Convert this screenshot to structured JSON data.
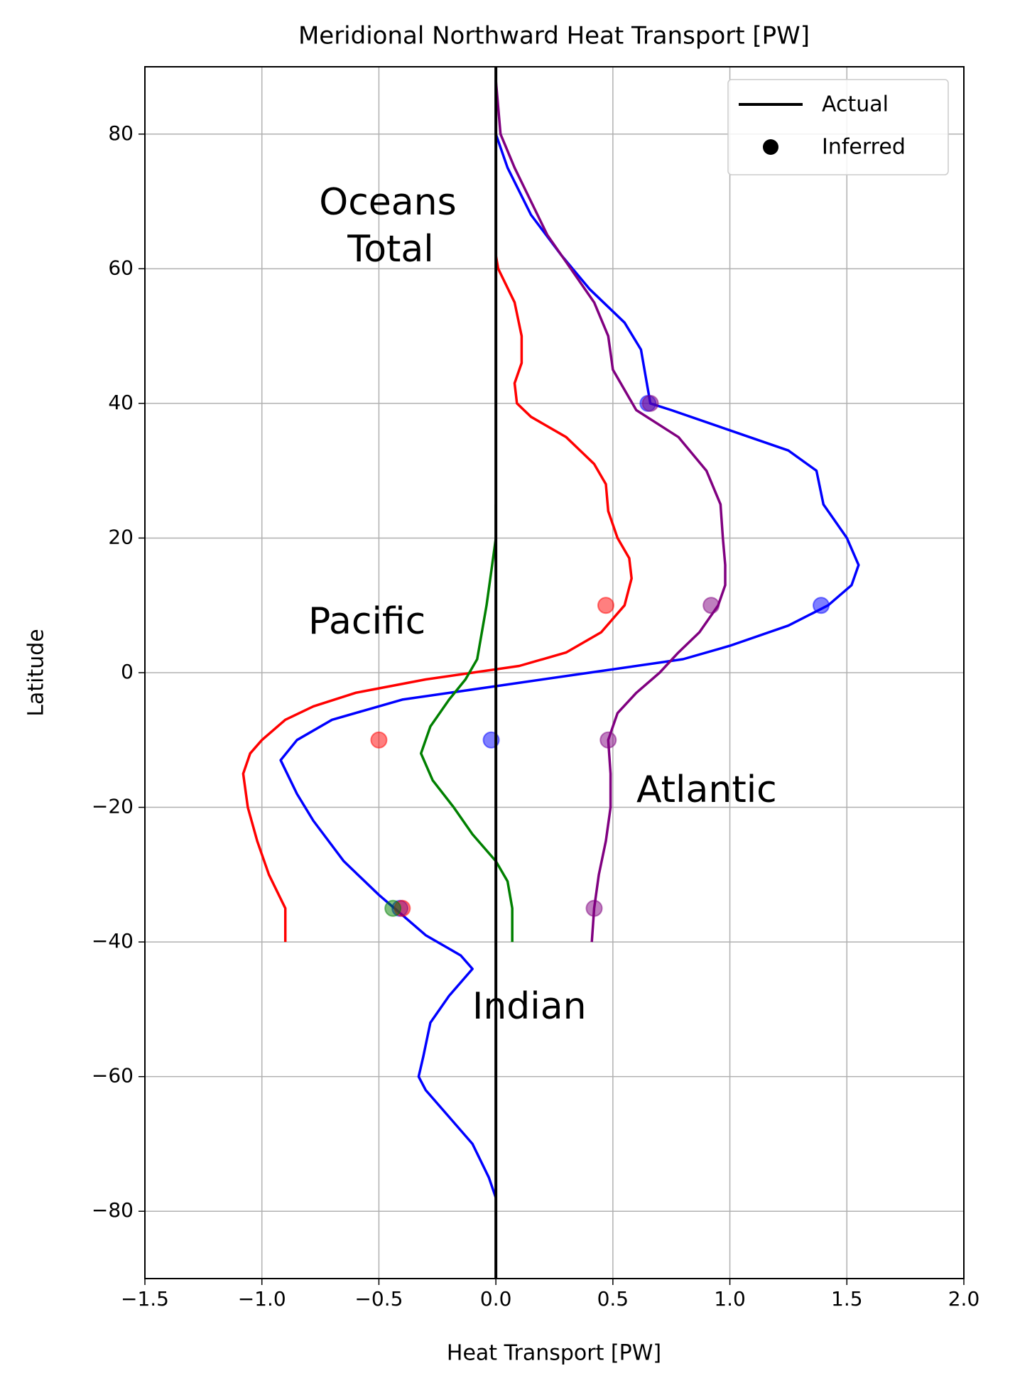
{
  "chart_data": {
    "type": "line",
    "title": "Meridional Northward Heat Transport [PW]",
    "xlabel": "Heat Transport [PW]",
    "ylabel": "Latitude",
    "xlim": [
      -1.5,
      2.0
    ],
    "ylim": [
      -90,
      90
    ],
    "xticks": [
      {
        "value": -1.5,
        "label": "−1.5"
      },
      {
        "value": -1.0,
        "label": "−1.0"
      },
      {
        "value": -0.5,
        "label": "−0.5"
      },
      {
        "value": 0,
        "label": "0.0"
      },
      0.5,
      {
        "value": 1.0,
        "label": "1.0"
      },
      1.5,
      {
        "value": 2.0,
        "label": "2.0"
      }
    ],
    "yticks": [
      {
        "value": -80,
        "label": "−80"
      },
      {
        "value": -60,
        "label": "−60"
      },
      {
        "value": -40,
        "label": "−40"
      },
      {
        "value": -20,
        "label": "−20"
      },
      0,
      20,
      40,
      60,
      80
    ],
    "grid": true,
    "reference_line": 0,
    "legend": {
      "position": "upper right",
      "actual": "Actual",
      "inferred": "Inferred",
      "color": "#000000"
    },
    "series": [
      {
        "color": "#0000ff",
        "latitude": [
          -78,
          -75,
          -70,
          -66,
          -62,
          -60,
          -57,
          -52,
          -48,
          -44,
          -42,
          -39,
          -36,
          -33,
          -28,
          -22,
          -18,
          -13,
          -10,
          -7,
          -4,
          -2,
          0,
          2,
          4,
          7,
          10,
          13,
          16,
          20,
          25,
          30,
          33,
          36,
          39,
          40,
          42,
          44,
          48,
          52,
          57,
          62,
          68,
          75,
          80,
          88
        ],
        "values": [
          0.0,
          -0.03,
          -0.1,
          -0.2,
          -0.3,
          -0.33,
          -0.31,
          -0.28,
          -0.2,
          -0.1,
          -0.15,
          -0.3,
          -0.4,
          -0.5,
          -0.65,
          -0.78,
          -0.85,
          -0.92,
          -0.85,
          -0.7,
          -0.4,
          0.0,
          0.4,
          0.8,
          1.0,
          1.25,
          1.42,
          1.52,
          1.55,
          1.5,
          1.4,
          1.37,
          1.25,
          1.0,
          0.75,
          0.66,
          0.65,
          0.64,
          0.62,
          0.55,
          0.4,
          0.28,
          0.15,
          0.05,
          0.0,
          0.0
        ],
        "inferred_latitude": [
          -35,
          -10,
          10,
          40
        ],
        "inferred_values": [
          -0.41,
          -0.02,
          1.39,
          0.65
        ]
      },
      {
        "color": "#800080",
        "latitude": [
          -40,
          -35,
          -30,
          -25,
          -20,
          -15,
          -10,
          -6,
          -3,
          0,
          3,
          6,
          10,
          13,
          16,
          20,
          25,
          30,
          35,
          39,
          42,
          45,
          50,
          55,
          60,
          65,
          70,
          75,
          80,
          88
        ],
        "values": [
          0.41,
          0.42,
          0.44,
          0.47,
          0.49,
          0.49,
          0.48,
          0.52,
          0.6,
          0.7,
          0.78,
          0.87,
          0.95,
          0.98,
          0.98,
          0.97,
          0.96,
          0.9,
          0.78,
          0.6,
          0.55,
          0.5,
          0.48,
          0.42,
          0.32,
          0.22,
          0.15,
          0.08,
          0.02,
          0.0
        ],
        "inferred_latitude": [
          -35,
          -10,
          10,
          40
        ],
        "inferred_values": [
          0.42,
          0.48,
          0.92,
          0.66
        ]
      },
      {
        "color": "#ff0000",
        "latitude": [
          -40,
          -35,
          -30,
          -25,
          -20,
          -15,
          -12,
          -10,
          -7,
          -5,
          -3,
          -1,
          1,
          3,
          6,
          10,
          14,
          17,
          20,
          24,
          28,
          31,
          35,
          38,
          40,
          43,
          46,
          50,
          55,
          60,
          62
        ],
        "values": [
          -0.9,
          -0.9,
          -0.97,
          -1.02,
          -1.06,
          -1.08,
          -1.05,
          -1.0,
          -0.9,
          -0.78,
          -0.6,
          -0.3,
          0.1,
          0.3,
          0.45,
          0.55,
          0.58,
          0.57,
          0.52,
          0.48,
          0.47,
          0.42,
          0.3,
          0.15,
          0.09,
          0.08,
          0.11,
          0.11,
          0.08,
          0.01,
          0.0
        ],
        "inferred_latitude": [
          -35,
          -10,
          10
        ],
        "inferred_values": [
          -0.4,
          -0.5,
          0.47
        ]
      },
      {
        "color": "#008000",
        "latitude": [
          -40,
          -35,
          -31,
          -28,
          -24,
          -20,
          -16,
          -12,
          -8,
          -4,
          -1,
          2,
          6,
          10,
          15,
          20,
          25
        ],
        "values": [
          0.07,
          0.07,
          0.05,
          0.0,
          -0.1,
          -0.18,
          -0.27,
          -0.32,
          -0.28,
          -0.2,
          -0.13,
          -0.08,
          -0.06,
          -0.04,
          -0.02,
          0.0,
          0.0
        ],
        "inferred_latitude": [
          -35
        ],
        "inferred_values": [
          -0.44
        ]
      }
    ],
    "annotations": [
      {
        "lines": [
          "Oceans",
          "Total"
        ],
        "color": "#0000ff"
      },
      {
        "lines": [
          "Pacific"
        ],
        "color": "#ff0000"
      },
      {
        "lines": [
          "Atlantic"
        ],
        "color": "#800080"
      },
      {
        "lines": [
          "Indian"
        ],
        "color": "#008000"
      }
    ]
  }
}
